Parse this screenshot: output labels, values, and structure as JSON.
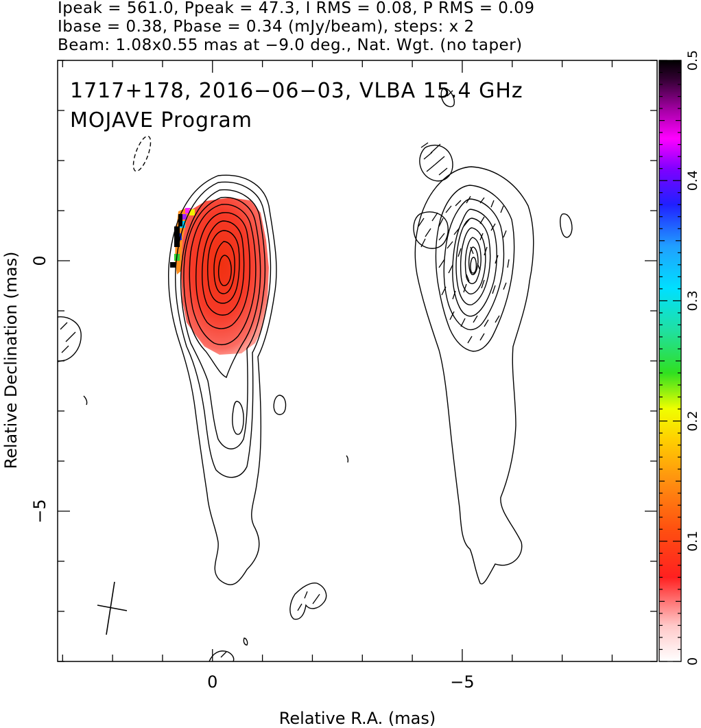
{
  "header": {
    "line1": "Ipeak = 561.0, Ppeak = 47.3, I RMS = 0.08, P RMS = 0.09",
    "line2": "Ibase = 0.38, Pbase = 0.34 (mJy/beam), steps: x 2",
    "line3": "Beam: 1.08x0.55 mas at −9.0 deg., Nat. Wgt. (no taper)"
  },
  "chart_data": {
    "type": "heatmap",
    "title_line1": "1717+178, 2016−06−03, VLBA 15.4 GHz",
    "title_line2": "MOJAVE Program",
    "xlabel": "Relative R.A. (mas)",
    "ylabel": "Relative Declination (mas)",
    "x_ticks": [
      {
        "value": 0,
        "label": "0"
      },
      {
        "value": -5,
        "label": "−5"
      }
    ],
    "y_ticks": [
      {
        "value": 0,
        "label": "0"
      },
      {
        "value": -5,
        "label": "−5"
      }
    ],
    "xlim": [
      3.1,
      -8.9
    ],
    "ylim": [
      -8.0,
      4.0
    ],
    "colorbar": {
      "range": [
        0,
        0.5
      ],
      "ticks": [
        {
          "value": 0,
          "label": "0"
        },
        {
          "value": 0.1,
          "label": "0.1"
        },
        {
          "value": 0.2,
          "label": "0.2"
        },
        {
          "value": 0.3,
          "label": "0.3"
        },
        {
          "value": 0.4,
          "label": "0.4"
        },
        {
          "value": 0.5,
          "label": "0.5"
        }
      ]
    },
    "panels": [
      {
        "name": "total intensity with fractional polarization",
        "center": [
          0,
          0
        ]
      },
      {
        "name": "polarized intensity with EVPA ticks",
        "center": [
          -5,
          0
        ]
      }
    ],
    "beam": {
      "major_mas": 1.08,
      "minor_mas": 0.55,
      "pa_deg": -9.0
    }
  }
}
